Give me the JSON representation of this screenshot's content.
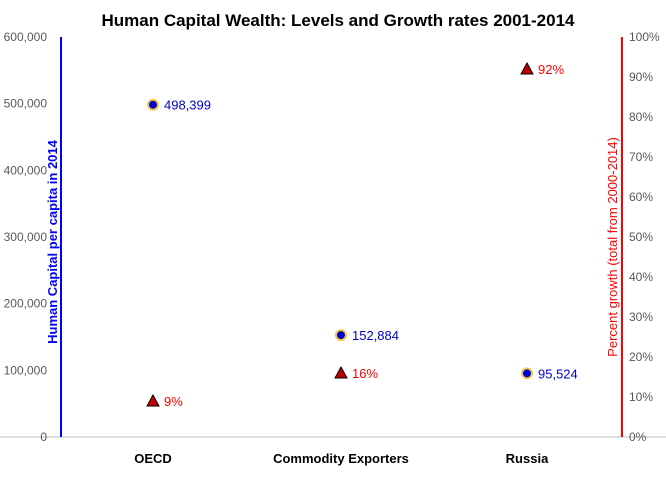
{
  "chart_data": {
    "type": "scatter",
    "title": "Human Capital Wealth: Levels and Growth rates 2001-2014",
    "categories": [
      "OECD",
      "Commodity Exporters",
      "Russia"
    ],
    "y_left": {
      "label": "Human Capital per capita in 2014",
      "range": [
        0,
        600000
      ],
      "ticks": [
        "0",
        "100,000",
        "200,000",
        "300,000",
        "400,000",
        "500,000",
        "600,000"
      ],
      "color": "#0000FF"
    },
    "y_right": {
      "label": "Percent growth (total from 2000-2014)",
      "range": [
        0,
        100
      ],
      "ticks": [
        "0%",
        "10%",
        "20%",
        "30%",
        "40%",
        "50%",
        "60%",
        "70%",
        "80%",
        "90%",
        "100%"
      ],
      "color": "#FF0000"
    },
    "series": [
      {
        "axis": "left",
        "marker": "circle",
        "color": "#0000CC",
        "values": [
          498399,
          152884,
          95524
        ],
        "labels": [
          "498,399",
          "152,884",
          "95,524"
        ]
      },
      {
        "axis": "right",
        "marker": "triangle",
        "color": "#C00000",
        "values": [
          9,
          16,
          92
        ],
        "labels": [
          "9%",
          "16%",
          "92%"
        ]
      }
    ],
    "grid": false,
    "legend": "none"
  }
}
